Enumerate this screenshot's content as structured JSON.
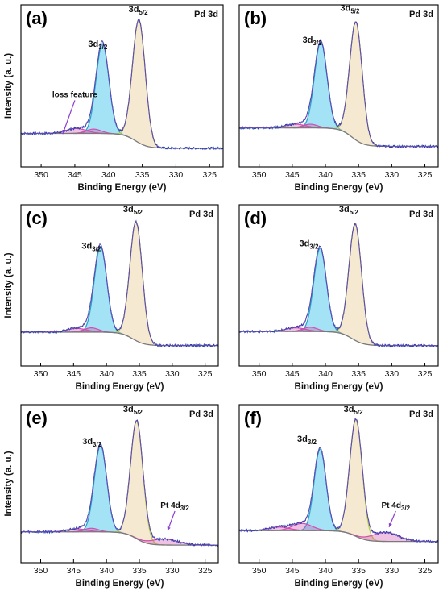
{
  "chart_data": [
    {
      "panel": "(a)",
      "type": "line",
      "title": "Pd 3d",
      "xlabel": "Binding Energy (eV)",
      "ylabel": "Intensity (a. u.)",
      "xlim": [
        353,
        323
      ],
      "xticks": [
        350,
        345,
        340,
        335,
        330,
        325
      ],
      "ylim": [
        0,
        1.05
      ],
      "peak_labels": [
        {
          "base": "3d",
          "sub": "3/2",
          "x": 341.6,
          "y": 0.74
        },
        {
          "base": "3d",
          "sub": "5/2",
          "x": 335.6,
          "y": 1.02
        }
      ],
      "annotations": [
        {
          "text": "loss feature",
          "x": 345.0,
          "y": 0.33,
          "arrow_x": 346.8,
          "arrow_y": 0.03
        }
      ],
      "peaks": [
        {
          "center": 340.9,
          "height": 0.73,
          "width": 0.95
        },
        {
          "center": 335.5,
          "height": 1.0,
          "width": 0.95
        }
      ],
      "loss_bumps": [
        {
          "center": 344.8,
          "height": 0.04,
          "width": 1.5
        },
        {
          "center": 342.2,
          "height": 0.035,
          "width": 1.1
        }
      ],
      "background": {
        "high": 0.035,
        "low": -0.085,
        "step_center": 336.0
      }
    },
    {
      "panel": "(b)",
      "type": "line",
      "title": "Pd 3d",
      "xlabel": "Binding Energy (eV)",
      "ylabel": "",
      "xlim": [
        353,
        323
      ],
      "xticks": [
        350,
        345,
        340,
        335,
        330,
        325
      ],
      "ylim": [
        0,
        1.05
      ],
      "peak_labels": [
        {
          "base": "3d",
          "sub": "3/2",
          "x": 342.0,
          "y": 0.77
        },
        {
          "base": "3d",
          "sub": "5/2",
          "x": 336.3,
          "y": 1.03
        }
      ],
      "annotations": [],
      "peaks": [
        {
          "center": 340.7,
          "height": 0.7,
          "width": 0.95
        },
        {
          "center": 335.4,
          "height": 0.96,
          "width": 0.95
        }
      ],
      "loss_bumps": [
        {
          "center": 344.5,
          "height": 0.03,
          "width": 1.5
        },
        {
          "center": 342.3,
          "height": 0.03,
          "width": 1.1
        }
      ],
      "background": {
        "high": 0.08,
        "low": -0.07,
        "step_center": 336.0
      }
    },
    {
      "panel": "(c)",
      "type": "line",
      "title": "Pd 3d",
      "xlabel": "Binding Energy (eV)",
      "ylabel": "Intensity (a. u.)",
      "xlim": [
        353,
        323
      ],
      "xticks": [
        350,
        345,
        340,
        335,
        330,
        325
      ],
      "ylim": [
        0,
        1.05
      ],
      "peak_labels": [
        {
          "base": "3d",
          "sub": "3/2",
          "x": 342.3,
          "y": 0.72
        },
        {
          "base": "3d",
          "sub": "5/2",
          "x": 336.0,
          "y": 1.02
        }
      ],
      "annotations": [],
      "peaks": [
        {
          "center": 340.9,
          "height": 0.7,
          "width": 0.95
        },
        {
          "center": 335.5,
          "height": 0.97,
          "width": 0.95
        }
      ],
      "loss_bumps": [
        {
          "center": 344.5,
          "height": 0.03,
          "width": 1.5
        },
        {
          "center": 342.3,
          "height": 0.035,
          "width": 1.1
        }
      ],
      "background": {
        "high": 0.04,
        "low": -0.07,
        "step_center": 336.0
      }
    },
    {
      "panel": "(d)",
      "type": "line",
      "title": "Pd 3d",
      "xlabel": "Binding Energy (eV)",
      "ylabel": "",
      "xlim": [
        353,
        323
      ],
      "xticks": [
        350,
        345,
        340,
        335,
        330,
        325
      ],
      "ylim": [
        0,
        1.05
      ],
      "peak_labels": [
        {
          "base": "3d",
          "sub": "3/2",
          "x": 342.5,
          "y": 0.74
        },
        {
          "base": "3d",
          "sub": "5/2",
          "x": 336.5,
          "y": 1.02
        }
      ],
      "annotations": [],
      "peaks": [
        {
          "center": 340.8,
          "height": 0.68,
          "width": 0.95
        },
        {
          "center": 335.5,
          "height": 0.95,
          "width": 0.95
        }
      ],
      "loss_bumps": [
        {
          "center": 344.5,
          "height": 0.03,
          "width": 1.5
        },
        {
          "center": 342.3,
          "height": 0.035,
          "width": 1.1
        }
      ],
      "background": {
        "high": 0.045,
        "low": -0.07,
        "step_center": 336.0
      }
    },
    {
      "panel": "(e)",
      "type": "line",
      "title": "Pd 3d",
      "xlabel": "Binding Energy (eV)",
      "ylabel": "Intensity (a. u.)",
      "xlim": [
        353,
        323
      ],
      "xticks": [
        350,
        345,
        340,
        335,
        330,
        325
      ],
      "ylim": [
        0,
        1.05
      ],
      "peak_labels": [
        {
          "base": "3d",
          "sub": "3/2",
          "x": 342.2,
          "y": 0.75
        },
        {
          "base": "3d",
          "sub": "5/2",
          "x": 336.0,
          "y": 1.02
        }
      ],
      "annotations": [
        {
          "text": "Pt 4d",
          "sub": "3/2",
          "x": 329.6,
          "y": 0.22,
          "arrow_x": 330.7,
          "arrow_y": 0.03
        }
      ],
      "peaks": [
        {
          "center": 340.9,
          "height": 0.72,
          "width": 0.95
        },
        {
          "center": 335.4,
          "height": 0.98,
          "width": 0.95
        }
      ],
      "loss_bumps": [
        {
          "center": 344.5,
          "height": 0.025,
          "width": 1.5
        },
        {
          "center": 342.3,
          "height": 0.03,
          "width": 1.1
        },
        {
          "center": 331.2,
          "height": 0.05,
          "width": 2.0
        }
      ],
      "background": {
        "high": 0.02,
        "low": -0.09,
        "step_center": 335.5
      }
    },
    {
      "panel": "(f)",
      "type": "line",
      "title": "Pd 3d",
      "xlabel": "Binding Energy (eV)",
      "ylabel": "",
      "xlim": [
        353,
        323
      ],
      "xticks": [
        350,
        345,
        340,
        335,
        330,
        325
      ],
      "ylim": [
        0,
        1.05
      ],
      "peak_labels": [
        {
          "base": "3d",
          "sub": "3/2",
          "x": 342.8,
          "y": 0.77
        },
        {
          "base": "3d",
          "sub": "5/2",
          "x": 335.8,
          "y": 1.02
        }
      ],
      "annotations": [
        {
          "text": "Pt 4d",
          "sub": "3/2",
          "x": 329.4,
          "y": 0.22,
          "arrow_x": 330.4,
          "arrow_y": 0.06
        }
      ],
      "peaks": [
        {
          "center": 340.8,
          "height": 0.68,
          "width": 0.9
        },
        {
          "center": 335.4,
          "height": 0.97,
          "width": 0.95
        }
      ],
      "loss_bumps": [
        {
          "center": 343.5,
          "height": 0.06,
          "width": 1.5
        },
        {
          "center": 347.0,
          "height": 0.03,
          "width": 1.6
        },
        {
          "center": 331.0,
          "height": 0.075,
          "width": 2.0
        }
      ],
      "background": {
        "high": 0.03,
        "low": -0.06,
        "step_center": 335.5
      }
    }
  ],
  "colors": {
    "raw": "#1f3aa8",
    "fit": "#7d4fb8",
    "peak32": "#2ea3c9",
    "peak52": "#b5cc4a",
    "peak32_fill": "#33c2e8",
    "peak52_fill": "#e8cf9a",
    "bump": "#d24db0",
    "background": "#7a7a7a",
    "arrow": "#8a3fd0"
  }
}
